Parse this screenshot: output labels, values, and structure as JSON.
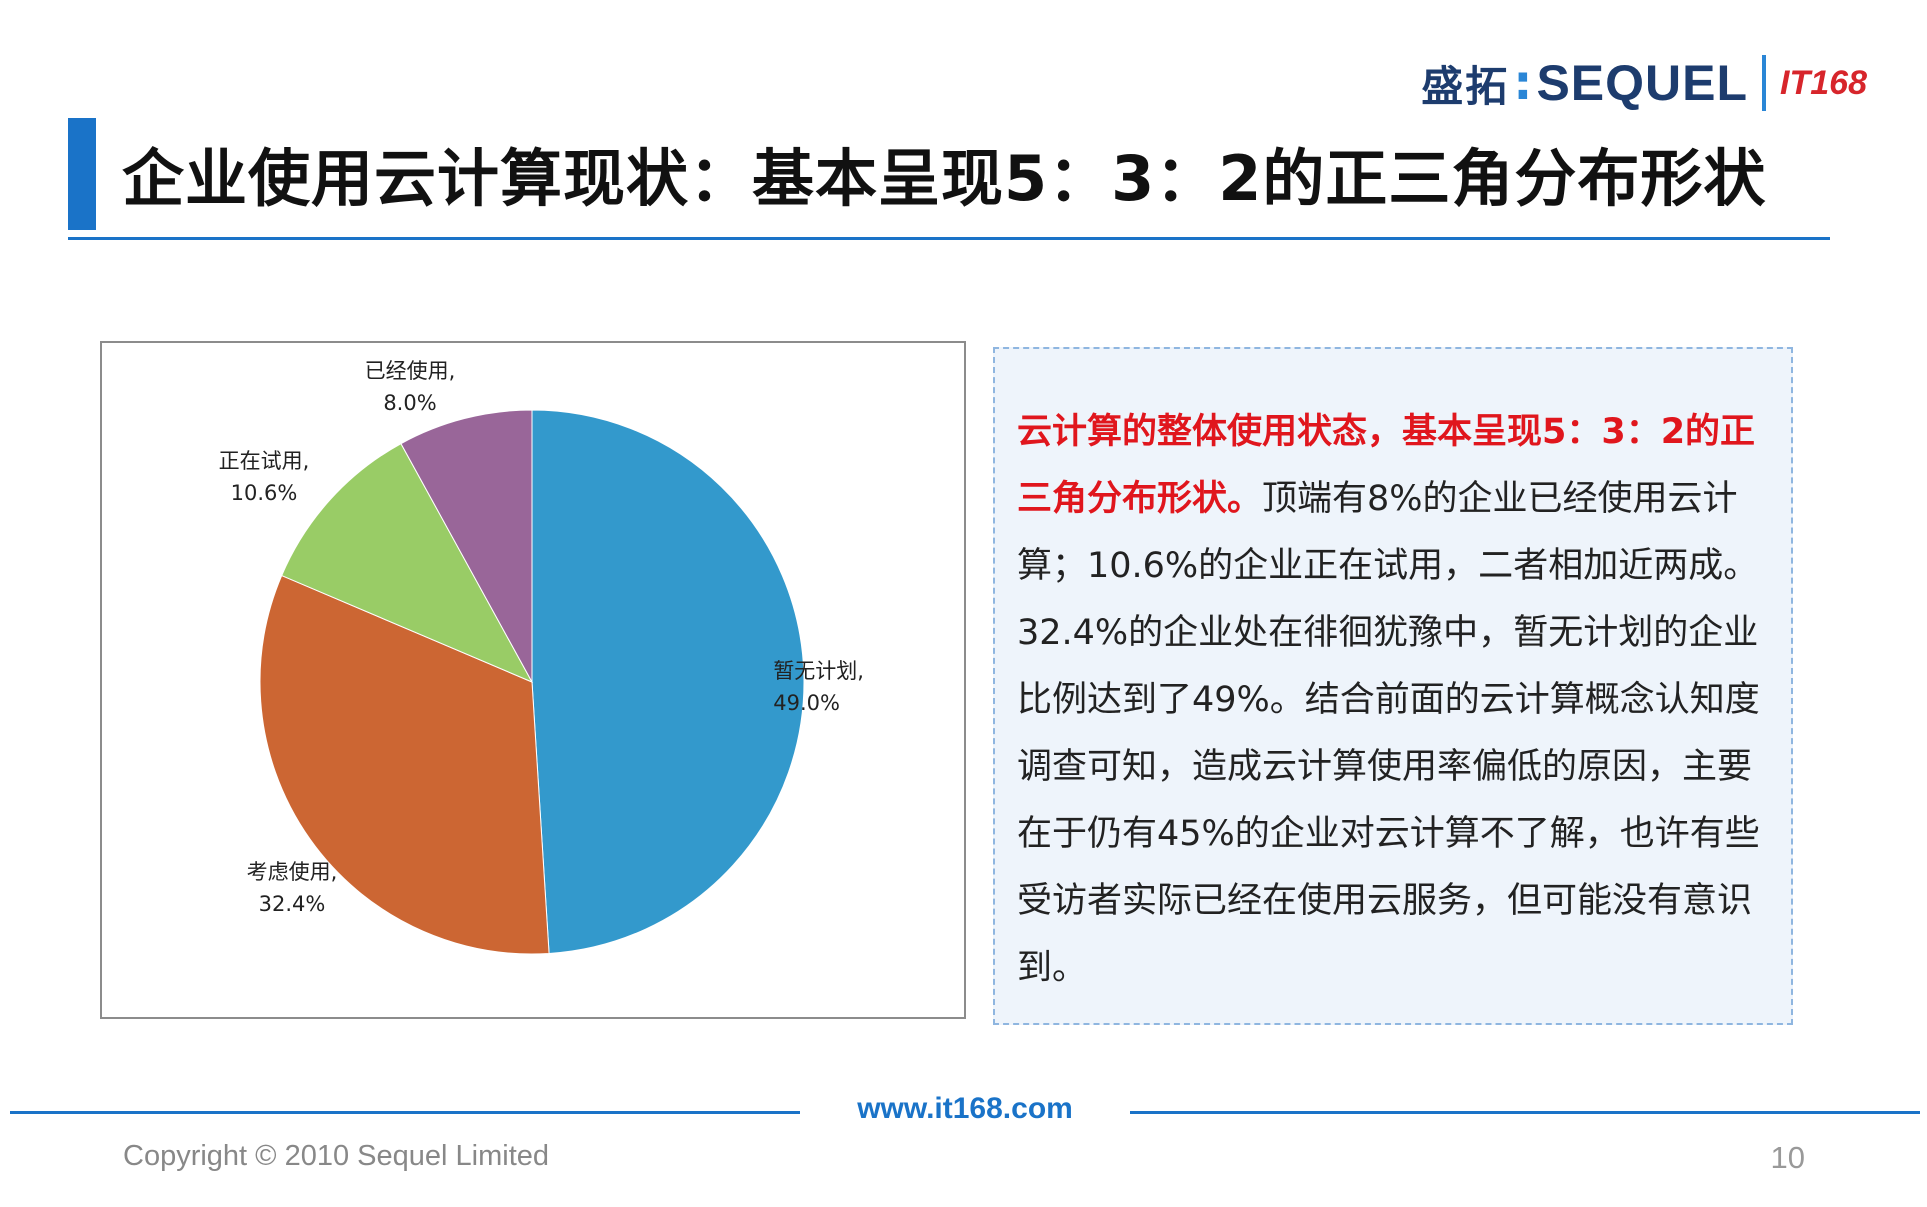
{
  "header": {
    "logo_cn": "盛拓",
    "logo_colon": ":",
    "logo_en": "SEQUEL",
    "logo_it": "IT168",
    "title": "企业使用云计算现状：基本呈现5：3：2的正三角分布形状"
  },
  "chart_data": {
    "type": "pie",
    "title": "",
    "slices": [
      {
        "label": "暂无计划",
        "value": 49.0,
        "value_text": "49.0%",
        "color": "#3399cc"
      },
      {
        "label": "考虑使用",
        "value": 32.4,
        "value_text": "32.4%",
        "color": "#cc6633"
      },
      {
        "label": "正在试用",
        "value": 10.6,
        "value_text": "10.6%",
        "color": "#99cc66"
      },
      {
        "label": "已经使用",
        "value": 8.0,
        "value_text": "8.0%",
        "color": "#996699"
      }
    ],
    "start": "12 o'clock",
    "direction": "clockwise"
  },
  "text_box": {
    "highlight": "云计算的整体使用状态，基本呈现5：3：2的正三角分布形状。",
    "body": "顶端有8%的企业已经使用云计算；10.6%的企业正在试用，二者相加近两成。32.4%的企业处在徘徊犹豫中，暂无计划的企业比例达到了49%。结合前面的云计算概念认知度调查可知，造成云计算使用率偏低的原因，主要在于仍有45%的企业对云计算不了解，也许有些受访者实际已经在使用云服务，但可能没有意识到。"
  },
  "footer": {
    "url": "www.it168.com",
    "copyright": "Copyright © 2010  Sequel Limited",
    "page_number": "10"
  }
}
